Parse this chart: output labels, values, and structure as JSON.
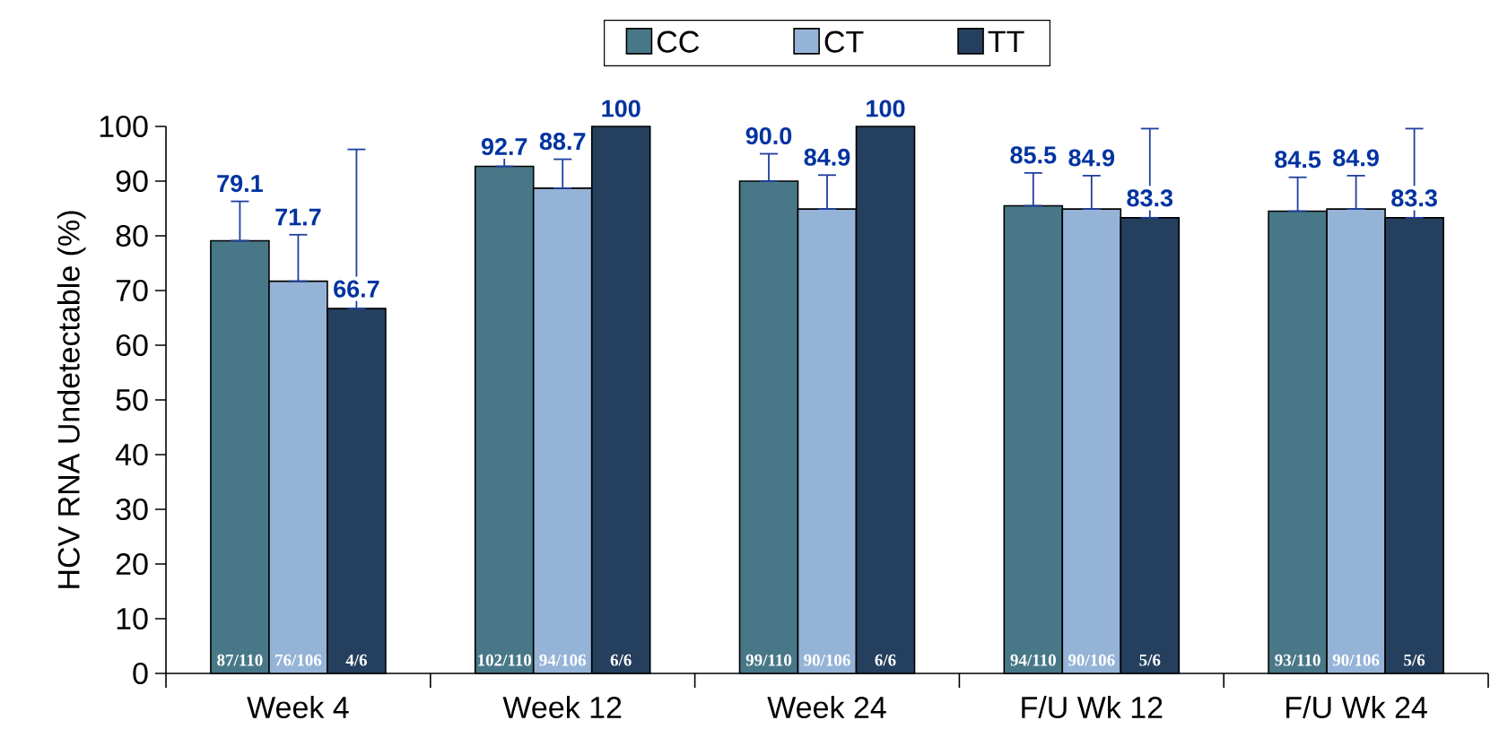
{
  "chart_data": {
    "type": "bar",
    "ylabel": "HCV RNA Undetectable (%)",
    "categories": [
      "Week 4",
      "Week 12",
      "Week 24",
      "F/U Wk 12",
      "F/U Wk 24"
    ],
    "series": [
      {
        "name": "CC",
        "color": "#487888",
        "values": [
          79.1,
          92.7,
          90.0,
          85.5,
          84.5
        ],
        "errors": [
          [
            79.1,
            86.3
          ],
          [
            92.7,
            96.8
          ],
          [
            90.0,
            95.0
          ],
          [
            85.5,
            91.5
          ],
          [
            84.5,
            90.7
          ]
        ],
        "value_labels": [
          "79.1",
          "92.7",
          "90.0",
          "85.5",
          "84.5"
        ]
      },
      {
        "name": "CT",
        "color": "#95b3d7",
        "values": [
          71.7,
          88.7,
          84.9,
          84.9,
          84.9
        ],
        "errors": [
          [
            71.7,
            80.2
          ],
          [
            88.7,
            94.0
          ],
          [
            84.9,
            91.1
          ],
          [
            84.9,
            91.0
          ],
          [
            84.9,
            91.0
          ]
        ],
        "value_labels": [
          "71.7",
          "88.7",
          "84.9",
          "84.9",
          "84.9"
        ]
      },
      {
        "name": "TT",
        "color": "#253f5e",
        "values": [
          66.7,
          100,
          100,
          83.3,
          83.3
        ],
        "errors": [
          [
            66.7,
            95.8
          ],
          null,
          null,
          [
            83.3,
            99.6
          ],
          [
            83.3,
            99.6
          ]
        ],
        "value_labels": [
          "66.7",
          "100",
          "100",
          "83.3",
          "83.3"
        ]
      }
    ],
    "ylim": [
      0,
      100
    ],
    "yticks": [
      0,
      10,
      20,
      30,
      40,
      50,
      60,
      70,
      80,
      90,
      100
    ],
    "legend": "top",
    "grid": false,
    "annotations": [
      "87/110",
      "76/106",
      "4/6",
      "102/110",
      "94/106",
      "6/6",
      "99/110",
      "90/106",
      "6/6",
      "94/110",
      "90/106",
      "5/6",
      "93/110",
      "90/106",
      "5/6"
    ]
  }
}
